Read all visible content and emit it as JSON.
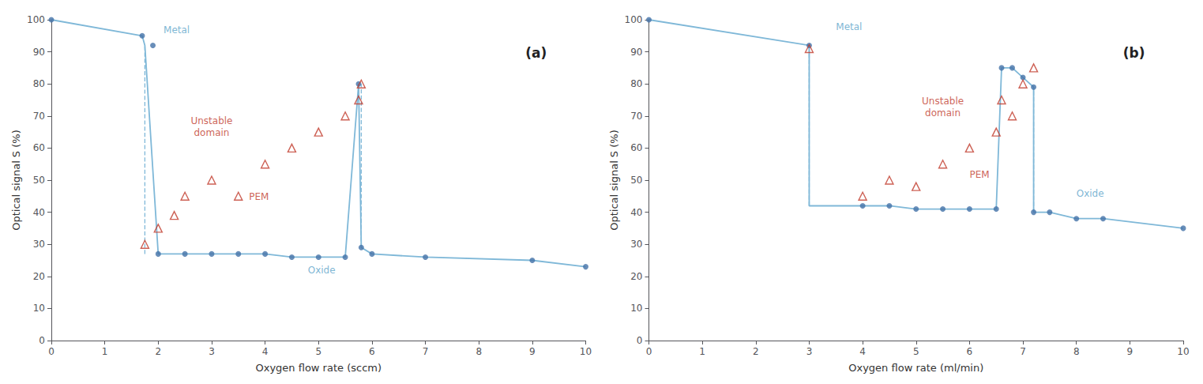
{
  "chart_data": [
    {
      "type": "line",
      "title": "(a)",
      "xlabel": "Oxygen flow rate (sccm)",
      "ylabel": "Optical signal S (%)",
      "xlim": [
        0,
        10
      ],
      "ylim": [
        0,
        100
      ],
      "xticks": [
        0,
        1,
        2,
        3,
        4,
        5,
        6,
        7,
        8,
        9,
        10
      ],
      "yticks": [
        0,
        10,
        20,
        30,
        40,
        50,
        60,
        70,
        80,
        90,
        100
      ],
      "grid": false,
      "series": [
        {
          "type": "line",
          "color": "#7fb8d8",
          "line_style": "solid",
          "x": [
            0,
            1.7,
            1.75,
            2.0,
            2.5,
            3.0,
            3.5,
            4.0,
            4.5,
            5.0,
            5.5,
            5.75,
            5.8,
            6.0,
            7.0,
            9.0,
            10.0
          ],
          "values": [
            100,
            95,
            92,
            27,
            27,
            27,
            27,
            27,
            26,
            26,
            26,
            80,
            29,
            27,
            26,
            25,
            23
          ]
        },
        {
          "type": "scatter",
          "color": "#4472a8",
          "marker": "circle",
          "x": [
            0,
            1.7,
            1.9,
            2.0,
            2.5,
            3.0,
            3.5,
            4.0,
            4.5,
            5.0,
            5.5,
            5.75,
            5.8,
            6.0,
            7.0,
            9.0,
            10.0
          ],
          "values": [
            100,
            95,
            92,
            27,
            27,
            27,
            27,
            27,
            26,
            26,
            26,
            80,
            29,
            27,
            26,
            25,
            23
          ]
        },
        {
          "type": "line",
          "color": "#7fb8d8",
          "line_style": "dashed",
          "x": [
            1.75,
            1.75
          ],
          "values": [
            27,
            92
          ]
        },
        {
          "type": "line",
          "color": "#7fb8d8",
          "line_style": "dashed",
          "x": [
            5.8,
            5.8
          ],
          "values": [
            29,
            80
          ]
        },
        {
          "type": "scatter",
          "color": "#c0392b",
          "marker": "triangle-open",
          "x": [
            1.75,
            2.0,
            2.3,
            2.5,
            3.0,
            3.5,
            4.0,
            4.5,
            5.0,
            5.5,
            5.75,
            5.8
          ],
          "values": [
            30,
            35,
            39,
            45,
            50,
            45,
            55,
            60,
            65,
            70,
            75,
            80
          ]
        }
      ],
      "annotations": [
        {
          "text": "Metal",
          "x": 2.1,
          "y": 95,
          "color": "#5ba3c9"
        },
        {
          "text": "Oxide",
          "x": 4.8,
          "y": 20,
          "color": "#5ba3c9"
        },
        {
          "text": "Unstable\ndomain",
          "x": 3.0,
          "y": 63,
          "color": "#c0392b"
        },
        {
          "text": "PEM",
          "x": 3.7,
          "y": 43,
          "color": "#c0392b"
        }
      ]
    },
    {
      "type": "line",
      "title": "(b)",
      "xlabel": "Oxygen flow rate (ml/min)",
      "ylabel": "Optical signal S (%)",
      "xlim": [
        0,
        10
      ],
      "ylim": [
        0,
        100
      ],
      "xticks": [
        0,
        1,
        2,
        3,
        4,
        5,
        6,
        7,
        8,
        9,
        10
      ],
      "yticks": [
        0,
        10,
        20,
        30,
        40,
        50,
        60,
        70,
        80,
        90,
        100
      ],
      "grid": false,
      "series": [
        {
          "type": "line",
          "color": "#7fb8d8",
          "line_style": "solid",
          "x": [
            0,
            3.0,
            3.0,
            4.0,
            4.5,
            5.0,
            5.5,
            6.0,
            6.5,
            6.6,
            6.8,
            7.0,
            7.2,
            7.2,
            7.5,
            8.0,
            8.5,
            10.0
          ],
          "values": [
            100,
            92,
            42,
            42,
            42,
            41,
            41,
            41,
            41,
            85,
            85,
            82,
            79,
            40,
            40,
            38,
            38,
            35
          ]
        },
        {
          "type": "scatter",
          "color": "#4472a8",
          "marker": "circle",
          "x": [
            0,
            3.0,
            4.0,
            4.5,
            5.0,
            5.5,
            6.0,
            6.5,
            6.6,
            6.8,
            7.0,
            7.2,
            7.2,
            7.5,
            8.0,
            8.5,
            10.0
          ],
          "values": [
            100,
            92,
            42,
            42,
            41,
            41,
            41,
            41,
            85,
            85,
            82,
            79,
            40,
            40,
            38,
            38,
            35
          ]
        },
        {
          "type": "line",
          "color": "#7fb8d8",
          "line_style": "dashed",
          "x": [
            3.0,
            3.0
          ],
          "values": [
            42,
            92
          ]
        },
        {
          "type": "line",
          "color": "#7fb8d8",
          "line_style": "dashed",
          "x": [
            7.2,
            7.2
          ],
          "values": [
            40,
            79
          ]
        },
        {
          "type": "scatter",
          "color": "#c0392b",
          "marker": "triangle-open",
          "x": [
            3.0,
            4.0,
            4.5,
            5.0,
            5.5,
            6.0,
            6.5,
            6.6,
            6.8,
            7.0,
            7.2
          ],
          "values": [
            91,
            45,
            50,
            48,
            55,
            60,
            65,
            75,
            70,
            80,
            85
          ]
        }
      ],
      "annotations": [
        {
          "text": "Metal",
          "x": 3.5,
          "y": 96,
          "color": "#5ba3c9"
        },
        {
          "text": "Oxide",
          "x": 8.0,
          "y": 44,
          "color": "#5ba3c9"
        },
        {
          "text": "Unstable\ndomain",
          "x": 5.5,
          "y": 69,
          "color": "#c0392b"
        },
        {
          "text": "PEM",
          "x": 6.0,
          "y": 50,
          "color": "#c0392b"
        }
      ]
    }
  ]
}
